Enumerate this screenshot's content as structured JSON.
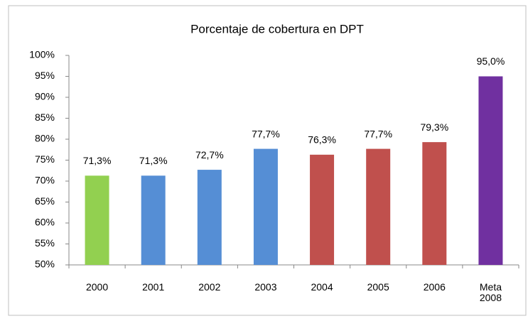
{
  "chart_data": {
    "type": "bar",
    "title": "Porcentaje de cobertura en DPT",
    "categories": [
      "2000",
      "2001",
      "2002",
      "2003",
      "2004",
      "2005",
      "2006",
      "Meta 2008"
    ],
    "values": [
      71.3,
      71.3,
      72.7,
      77.7,
      76.3,
      77.7,
      79.3,
      95.0
    ],
    "value_labels": [
      "71,3%",
      "71,3%",
      "72,7%",
      "77,7%",
      "76,3%",
      "77,7%",
      "79,3%",
      "95,0%"
    ],
    "colors": [
      "#92d050",
      "#558ed5",
      "#558ed5",
      "#558ed5",
      "#c0504d",
      "#c0504d",
      "#c0504d",
      "#7030a0"
    ],
    "ylim": [
      50,
      100
    ],
    "yticks": [
      {
        "value": 50,
        "label": "50%"
      },
      {
        "value": 55,
        "label": "55%"
      },
      {
        "value": 60,
        "label": "60%"
      },
      {
        "value": 65,
        "label": "65%"
      },
      {
        "value": 70,
        "label": "70%"
      },
      {
        "value": 75,
        "label": "75%"
      },
      {
        "value": 80,
        "label": "80%"
      },
      {
        "value": 85,
        "label": "85%"
      },
      {
        "value": 90,
        "label": "90%"
      },
      {
        "value": 95,
        "label": "95%"
      },
      {
        "value": 100,
        "label": "100%"
      }
    ],
    "grid": false
  }
}
